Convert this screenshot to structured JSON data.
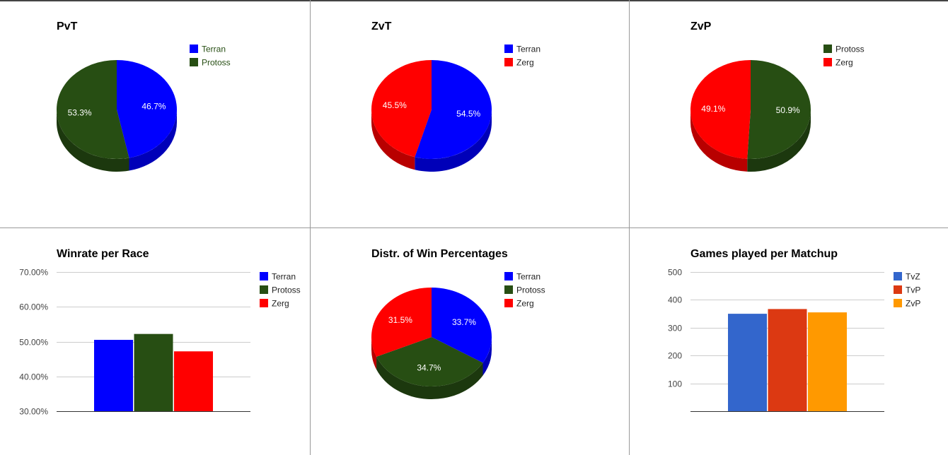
{
  "chart_data": [
    {
      "type": "pie",
      "title": "PvT",
      "labels": [
        "Terran",
        "Protoss"
      ],
      "values": [
        46.7,
        53.3
      ],
      "data_labels": [
        "46.7%",
        "53.3%"
      ],
      "colors": [
        "#0000ff",
        "#274e13"
      ],
      "legend_text_colors": [
        "#274e13",
        "#274e13"
      ],
      "start_angle": 0,
      "legend": "right"
    },
    {
      "type": "pie",
      "title": "ZvT",
      "labels": [
        "Terran",
        "Zerg"
      ],
      "values": [
        54.5,
        45.5
      ],
      "data_labels": [
        "54.5%",
        "45.5%"
      ],
      "colors": [
        "#0000ff",
        "#ff0000"
      ],
      "legend_text_colors": [
        "#222222",
        "#222222"
      ],
      "start_angle": 0,
      "legend": "right"
    },
    {
      "type": "pie",
      "title": "ZvP",
      "labels": [
        "Protoss",
        "Zerg"
      ],
      "values": [
        50.9,
        49.1
      ],
      "data_labels": [
        "50.9%",
        "49.1%"
      ],
      "colors": [
        "#274e13",
        "#ff0000"
      ],
      "legend_text_colors": [
        "#222222",
        "#222222"
      ],
      "start_angle": 0,
      "legend": "right"
    },
    {
      "type": "bar",
      "title": "Winrate per Race",
      "categories": [
        ""
      ],
      "series": [
        {
          "name": "Terran",
          "values": [
            50.5
          ],
          "color": "#0000ff"
        },
        {
          "name": "Protoss",
          "values": [
            52.2
          ],
          "color": "#274e13"
        },
        {
          "name": "Zerg",
          "values": [
            47.2
          ],
          "color": "#ff0000"
        }
      ],
      "ylim": [
        30,
        70
      ],
      "yticks": [
        30,
        40,
        50,
        60,
        70
      ],
      "ytick_labels": [
        "30.00%",
        "40.00%",
        "50.00%",
        "60.00%",
        "70.00%"
      ],
      "grid": true,
      "legend": "right"
    },
    {
      "type": "pie",
      "title": "Distr. of Win Percentages",
      "labels": [
        "Terran",
        "Protoss",
        "Zerg"
      ],
      "values": [
        33.7,
        34.7,
        31.5
      ],
      "data_labels": [
        "33.7%",
        "34.7%",
        "31.5%"
      ],
      "colors": [
        "#0000ff",
        "#274e13",
        "#ff0000"
      ],
      "legend_text_colors": [
        "#222222",
        "#222222",
        "#222222"
      ],
      "start_angle": 0,
      "legend": "right"
    },
    {
      "type": "bar",
      "title": "Games played per Matchup",
      "categories": [
        ""
      ],
      "series": [
        {
          "name": "TvZ",
          "values": [
            350
          ],
          "color": "#3366cc"
        },
        {
          "name": "TvP",
          "values": [
            367
          ],
          "color": "#dc3912"
        },
        {
          "name": "ZvP",
          "values": [
            355
          ],
          "color": "#ff9900"
        }
      ],
      "ylim": [
        0,
        500
      ],
      "yticks": [
        100,
        200,
        300,
        400,
        500
      ],
      "ytick_labels": [
        "100",
        "200",
        "300",
        "400",
        "500"
      ],
      "grid": true,
      "legend": "right"
    }
  ]
}
